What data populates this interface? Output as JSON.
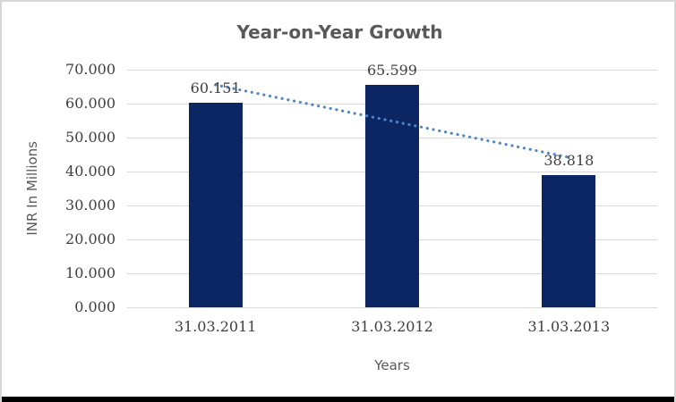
{
  "chart_data": {
    "type": "bar",
    "title": "Year-on-Year Growth",
    "categories": [
      "31.03.2011",
      "31.03.2012",
      "31.03.2013"
    ],
    "values": [
      60.151,
      65.599,
      38.818
    ],
    "data_labels": [
      "60.151",
      "65.599",
      "38.818"
    ],
    "xlabel": "Years",
    "ylabel": "INR In Millions",
    "ylim": [
      0,
      70
    ],
    "ytick_step": 10,
    "ytick_labels": [
      "0.000",
      "10.000",
      "20.000",
      "30.000",
      "40.000",
      "50.000",
      "60.000",
      "70.000"
    ],
    "grid": true,
    "legend": "none",
    "bar_color": "#0c2663",
    "trendline": {
      "type": "linear",
      "style": "dotted",
      "color": "#4d87c8"
    },
    "colors": {
      "title_text": "#595959",
      "tick_text": "#3f3f3f",
      "gridline": "#d9d9d9",
      "frame_border": "#d6d6d6",
      "bottom_strip": "#000000"
    }
  }
}
